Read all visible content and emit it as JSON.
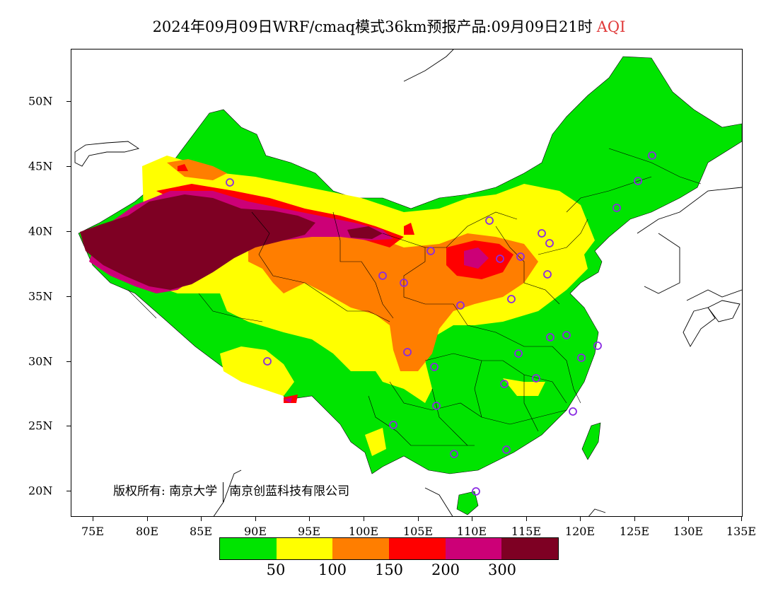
{
  "title": {
    "main": "2024年09月09日WRF/cmaq模式36km预报产品:09月09日21时",
    "product": "AQI"
  },
  "y_axis_labels": [
    "50N",
    "45N",
    "40N",
    "35N",
    "30N",
    "25N",
    "20N"
  ],
  "x_axis_labels": [
    "75E",
    "80E",
    "85E",
    "90E",
    "95E",
    "100E",
    "105E",
    "110E",
    "115E",
    "120E",
    "125E",
    "130E",
    "135E"
  ],
  "copyright": {
    "prefix": "版权所有:",
    "org1": "南京大学",
    "org2": "南京创蓝科技有限公司"
  },
  "legend": {
    "colors": [
      "#00e400",
      "#ffff00",
      "#ff7e00",
      "#ff0000",
      "#cc0077",
      "#7e0023"
    ],
    "labels": [
      "50",
      "100",
      "150",
      "200",
      "300"
    ]
  },
  "map": {
    "extent_lon": [
      73,
      135
    ],
    "extent_lat": [
      18,
      54
    ],
    "station_marker_color": "#8a2be2",
    "aqi_regions": [
      "Xinjiang Tarim Basin: AQI > 300",
      "Hexi corridor / Qaidam edge: AQI 150-300",
      "North China / Shanxi-Hebei: AQI 150-200",
      "Northwest / Loess plateau: AQI 100-150",
      "South and Northeast China: AQI < 50"
    ]
  }
}
